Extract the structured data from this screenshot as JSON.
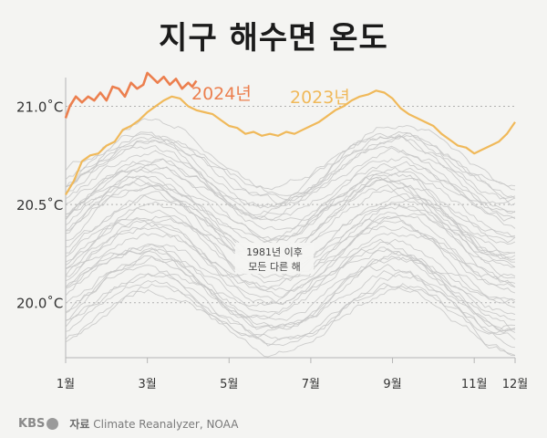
{
  "title": "지구 해수면 온도",
  "footer": {
    "logo_text": "KBS",
    "source_label": "자료",
    "source_text": "Climate Reanalyzer, NOAA"
  },
  "chart_data": {
    "type": "line",
    "title": "지구 해수면 온도",
    "y_ticks": [
      "21.0˚C",
      "20.5˚C",
      "20.0˚C"
    ],
    "y_tick_values": [
      21.0,
      20.5,
      20.0
    ],
    "ylim": [
      19.72,
      21.1
    ],
    "x_ticks": [
      "1월",
      "3월",
      "5월",
      "7월",
      "9월",
      "11월",
      "12월"
    ],
    "x_tick_months": [
      1,
      3,
      5,
      7,
      9,
      11,
      12
    ],
    "xlim": [
      1,
      12
    ],
    "grid": "horizontal dotted at y ticks",
    "annotation": "1981년 이후\n모든 다른 해",
    "colors": {
      "2024": "#ec7f4e",
      "2023": "#f0b95a",
      "other_years": "#c4c4c4"
    },
    "series": [
      {
        "name": "2024년",
        "x": [
          1.0,
          1.1,
          1.25,
          1.4,
          1.55,
          1.7,
          1.85,
          2.0,
          2.15,
          2.3,
          2.45,
          2.6,
          2.75,
          2.9,
          3.0,
          3.1,
          3.25,
          3.4,
          3.55,
          3.7,
          3.85,
          4.0,
          4.1,
          4.2
        ],
        "values": [
          20.94,
          21.0,
          21.05,
          21.02,
          21.05,
          21.03,
          21.07,
          21.03,
          21.1,
          21.09,
          21.05,
          21.12,
          21.09,
          21.11,
          21.17,
          21.15,
          21.12,
          21.15,
          21.11,
          21.14,
          21.09,
          21.12,
          21.1,
          21.13
        ]
      },
      {
        "name": "2023년",
        "x": [
          1.0,
          1.2,
          1.4,
          1.6,
          1.8,
          2.0,
          2.2,
          2.4,
          2.6,
          2.8,
          3.0,
          3.2,
          3.4,
          3.6,
          3.8,
          4.0,
          4.2,
          4.4,
          4.6,
          4.8,
          5.0,
          5.2,
          5.4,
          5.6,
          5.8,
          6.0,
          6.2,
          6.4,
          6.6,
          6.8,
          7.0,
          7.2,
          7.4,
          7.6,
          7.8,
          8.0,
          8.2,
          8.4,
          8.6,
          8.8,
          9.0,
          9.2,
          9.4,
          9.6,
          9.8,
          10.0,
          10.2,
          10.4,
          10.6,
          10.8,
          11.0,
          11.2,
          11.4,
          11.6,
          11.8,
          12.0
        ],
        "values": [
          20.55,
          20.62,
          20.72,
          20.75,
          20.76,
          20.8,
          20.82,
          20.88,
          20.9,
          20.93,
          20.97,
          21.0,
          21.03,
          21.05,
          21.04,
          21.0,
          20.98,
          20.97,
          20.96,
          20.93,
          20.9,
          20.89,
          20.86,
          20.87,
          20.85,
          20.86,
          20.85,
          20.87,
          20.86,
          20.88,
          20.9,
          20.92,
          20.95,
          20.98,
          21.0,
          21.03,
          21.05,
          21.06,
          21.08,
          21.07,
          21.04,
          20.99,
          20.96,
          20.94,
          20.92,
          20.9,
          20.86,
          20.83,
          20.8,
          20.79,
          20.76,
          20.78,
          20.8,
          20.82,
          20.86,
          20.92
        ]
      }
    ]
  }
}
